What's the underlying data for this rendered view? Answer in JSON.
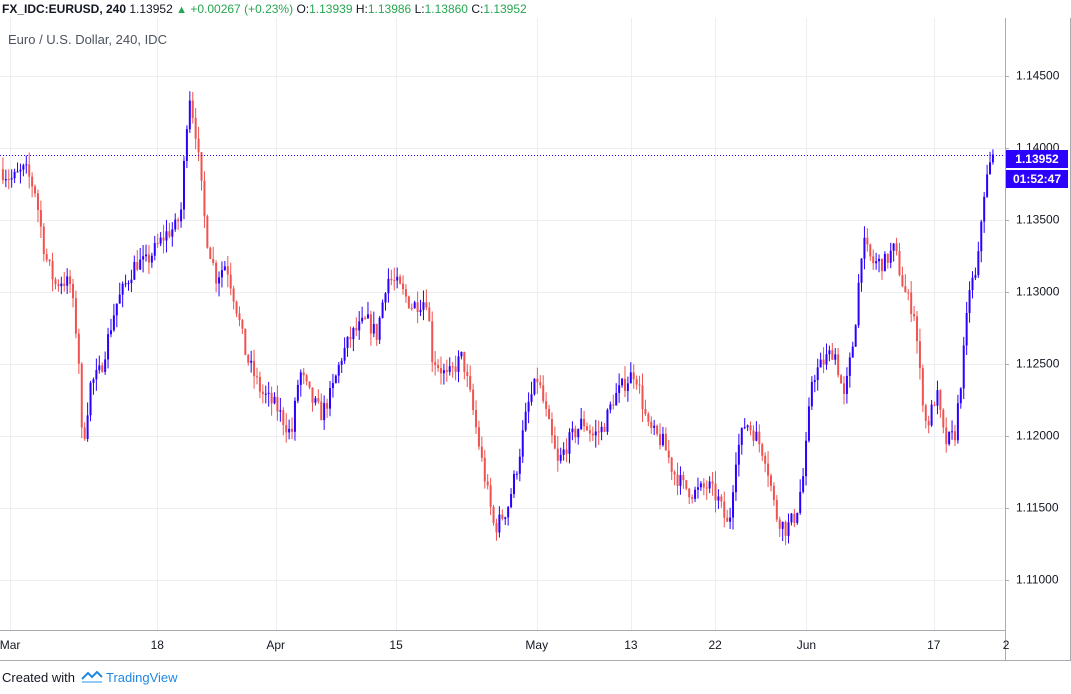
{
  "header": {
    "symbol": "FX_IDC:EURUSD, 240",
    "last": "1.13952",
    "change": "+0.00267 (+0.23%)",
    "o_label": "O:",
    "o_value": "1.13939",
    "h_label": "H:",
    "h_value": "1.13986",
    "l_label": "L:",
    "l_value": "1.13860",
    "c_label": "C:",
    "c_value": "1.13952",
    "up_color": "#26a650"
  },
  "subtitle": "Euro / U.S. Dollar, 240, IDC",
  "price_tag": "1.13952",
  "timer_tag": "01:52:47",
  "footer": {
    "prefix": "Created with",
    "brand": "TradingView",
    "logo_icon": "tradingview-logo-icon"
  },
  "chart_data": {
    "type": "candlestick",
    "y_ticks": [
      "1.11000",
      "1.11500",
      "1.12000",
      "1.12500",
      "1.13000",
      "1.13500",
      "1.14000",
      "1.14500"
    ],
    "ylim": [
      1.1065,
      1.149
    ],
    "x_ticks": [
      {
        "label": "Mar",
        "t": 0.01
      },
      {
        "label": "18",
        "t": 0.1565
      },
      {
        "label": "Apr",
        "t": 0.2743
      },
      {
        "label": "15",
        "t": 0.3941
      },
      {
        "label": "May",
        "t": 0.5341
      },
      {
        "label": "13",
        "t": 0.6278
      },
      {
        "label": "22",
        "t": 0.7116
      },
      {
        "label": "Jun",
        "t": 0.8024
      },
      {
        "label": "17",
        "t": 0.9291
      },
      {
        "label": "2",
        "t": 1.0011
      }
    ],
    "current_price": 1.13952,
    "grid": true,
    "up_color": "#2b00ff",
    "down_color": "#ef5350",
    "path": [
      [
        0.0,
        1.1385
      ],
      [
        0.012,
        1.1378
      ],
      [
        0.025,
        1.1385
      ],
      [
        0.035,
        1.137
      ],
      [
        0.045,
        1.1325
      ],
      [
        0.055,
        1.1305
      ],
      [
        0.062,
        1.1308
      ],
      [
        0.07,
        1.1305
      ],
      [
        0.078,
        1.126
      ],
      [
        0.082,
        1.119
      ],
      [
        0.09,
        1.1235
      ],
      [
        0.1,
        1.1245
      ],
      [
        0.115,
        1.129
      ],
      [
        0.125,
        1.1305
      ],
      [
        0.135,
        1.132
      ],
      [
        0.145,
        1.132
      ],
      [
        0.155,
        1.133
      ],
      [
        0.165,
        1.134
      ],
      [
        0.175,
        1.1345
      ],
      [
        0.18,
        1.1355
      ],
      [
        0.188,
        1.144
      ],
      [
        0.195,
        1.141
      ],
      [
        0.205,
        1.134
      ],
      [
        0.215,
        1.131
      ],
      [
        0.225,
        1.132
      ],
      [
        0.235,
        1.129
      ],
      [
        0.245,
        1.1255
      ],
      [
        0.26,
        1.123
      ],
      [
        0.275,
        1.122
      ],
      [
        0.29,
        1.12
      ],
      [
        0.298,
        1.1245
      ],
      [
        0.31,
        1.1225
      ],
      [
        0.32,
        1.1215
      ],
      [
        0.33,
        1.123
      ],
      [
        0.34,
        1.1255
      ],
      [
        0.35,
        1.127
      ],
      [
        0.365,
        1.128
      ],
      [
        0.375,
        1.127
      ],
      [
        0.385,
        1.131
      ],
      [
        0.395,
        1.1305
      ],
      [
        0.41,
        1.129
      ],
      [
        0.425,
        1.1295
      ],
      [
        0.43,
        1.1255
      ],
      [
        0.445,
        1.124
      ],
      [
        0.46,
        1.1255
      ],
      [
        0.47,
        1.122
      ],
      [
        0.48,
        1.118
      ],
      [
        0.492,
        1.1135
      ],
      [
        0.505,
        1.115
      ],
      [
        0.515,
        1.118
      ],
      [
        0.525,
        1.122
      ],
      [
        0.535,
        1.124
      ],
      [
        0.545,
        1.121
      ],
      [
        0.555,
        1.118
      ],
      [
        0.565,
        1.1195
      ],
      [
        0.58,
        1.121
      ],
      [
        0.59,
        1.12
      ],
      [
        0.6,
        1.1205
      ],
      [
        0.61,
        1.1225
      ],
      [
        0.62,
        1.1235
      ],
      [
        0.632,
        1.1245
      ],
      [
        0.645,
        1.1205
      ],
      [
        0.66,
        1.1195
      ],
      [
        0.67,
        1.1175
      ],
      [
        0.68,
        1.1165
      ],
      [
        0.69,
        1.116
      ],
      [
        0.705,
        1.1165
      ],
      [
        0.715,
        1.1155
      ],
      [
        0.725,
        1.1135
      ],
      [
        0.732,
        1.1185
      ],
      [
        0.742,
        1.121
      ],
      [
        0.752,
        1.12
      ],
      [
        0.762,
        1.1185
      ],
      [
        0.772,
        1.1145
      ],
      [
        0.782,
        1.1135
      ],
      [
        0.792,
        1.1145
      ],
      [
        0.8,
        1.1175
      ],
      [
        0.808,
        1.124
      ],
      [
        0.818,
        1.125
      ],
      [
        0.83,
        1.126
      ],
      [
        0.84,
        1.1225
      ],
      [
        0.85,
        1.127
      ],
      [
        0.858,
        1.1335
      ],
      [
        0.868,
        1.132
      ],
      [
        0.88,
        1.132
      ],
      [
        0.89,
        1.133
      ],
      [
        0.9,
        1.13
      ],
      [
        0.91,
        1.1285
      ],
      [
        0.915,
        1.1245
      ],
      [
        0.922,
        1.1205
      ],
      [
        0.932,
        1.123
      ],
      [
        0.94,
        1.1195
      ],
      [
        0.95,
        1.12
      ],
      [
        0.958,
        1.125
      ],
      [
        0.965,
        1.1305
      ],
      [
        0.972,
        1.131
      ],
      [
        0.978,
        1.1365
      ],
      [
        0.984,
        1.1385
      ],
      [
        0.988,
        1.1395
      ]
    ]
  }
}
